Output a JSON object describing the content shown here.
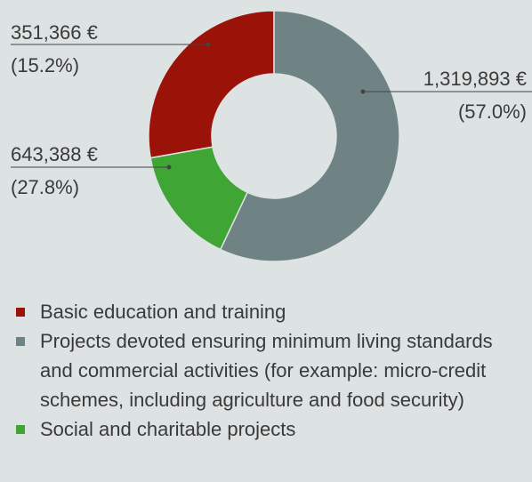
{
  "chart_data": {
    "type": "donut",
    "categories": [
      "Basic education and training",
      "Projects devoted ensuring minimum living standards and commercial activities (for example: micro-credit schemes, including agriculture and food security)",
      "Social and charitable projects"
    ],
    "values": [
      643388,
      1319893,
      351366
    ],
    "value_labels": [
      "643,388 €",
      "1,319,893 €",
      "351,366 €"
    ],
    "percentages": [
      27.8,
      57.0,
      15.2
    ],
    "percentage_labels": [
      "(27.8%)",
      "(57.0%)",
      "(15.2%)"
    ],
    "colors": [
      "#9b1208",
      "#6f8384",
      "#3fa535"
    ],
    "legend": "bottom"
  }
}
